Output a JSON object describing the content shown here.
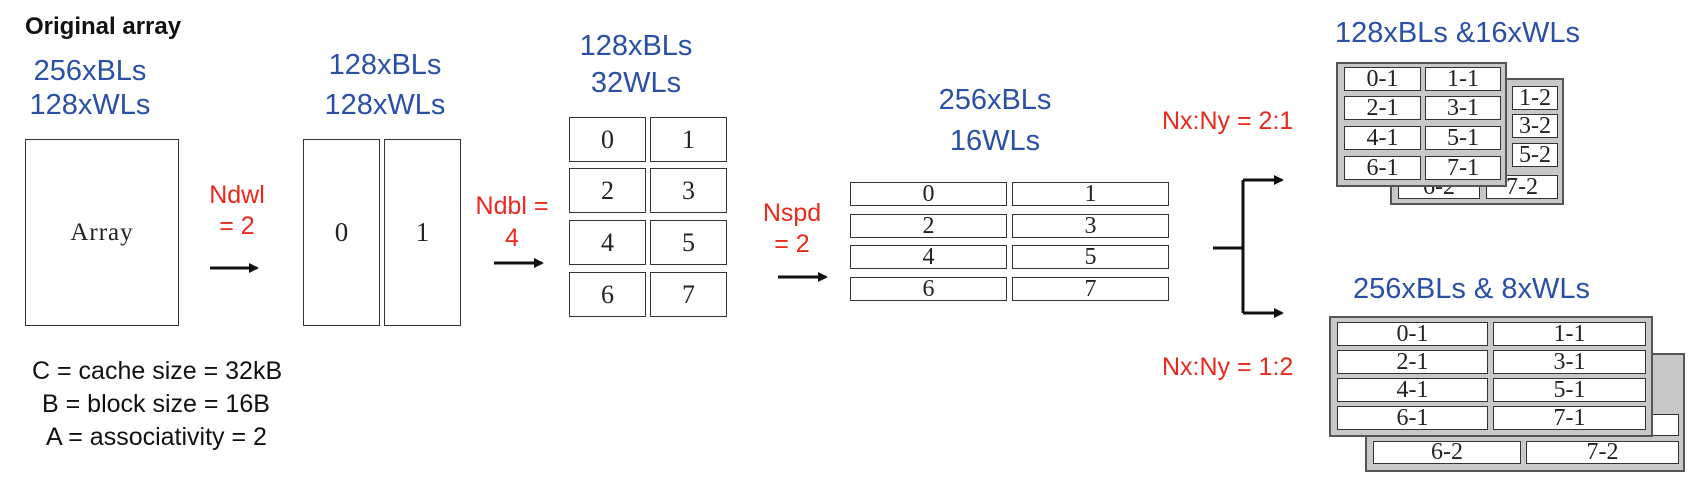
{
  "header": {
    "title": "Original array"
  },
  "original": {
    "bls": "256xBLs",
    "wls": "128xWLs",
    "array_label": "Array"
  },
  "step1": {
    "label_top": "Ndwl",
    "label_bottom": "= 2",
    "bls": "128xBLs",
    "wls": "128xWLs",
    "boxes": [
      "0",
      "1"
    ]
  },
  "step2": {
    "label_top": "Ndbl =",
    "label_bottom": "4",
    "bls": "128xBLs",
    "wls": "32WLs",
    "boxes": [
      "0",
      "1",
      "2",
      "3",
      "4",
      "5",
      "6",
      "7"
    ]
  },
  "step3": {
    "label_top": "Nspd",
    "label_bottom": "= 2",
    "bls": "256xBLs",
    "wls": "16WLs",
    "boxes": [
      "0",
      "1",
      "2",
      "3",
      "4",
      "5",
      "6",
      "7"
    ]
  },
  "variant_a": {
    "title": "128xBLs &16xWLs",
    "ratio": "Nx:Ny = 2:1",
    "front": [
      "0-1",
      "1-1",
      "2-1",
      "3-1",
      "4-1",
      "5-1",
      "6-1",
      "7-1"
    ],
    "back": [
      "1-2",
      "3-2",
      "5-2",
      "6-2",
      "7-2"
    ]
  },
  "variant_b": {
    "title": "256xBLs & 8xWLs",
    "ratio": "Nx:Ny = 1:2",
    "front": [
      "0-1",
      "1-1",
      "2-1",
      "3-1",
      "4-1",
      "5-1",
      "6-1",
      "7-1"
    ],
    "back": [
      "6-2",
      "7-2"
    ]
  },
  "params": {
    "cache": "C = cache size = 32kB",
    "block": "B = block size = 16B",
    "assoc": "A = associativity = 2"
  },
  "colors": {
    "blue": "#2a4fa6",
    "red": "#e8291c",
    "frame": "#c8c8c8"
  }
}
